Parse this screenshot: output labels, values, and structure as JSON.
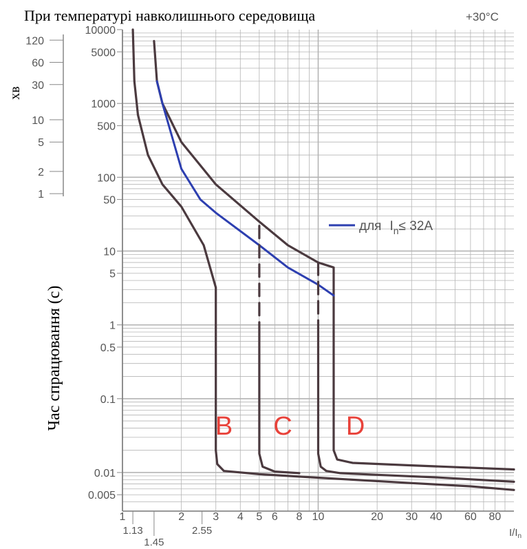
{
  "chart_data": {
    "type": "line",
    "title": "При температурі навколишнього середовища",
    "title_suffix": "+30°C",
    "ylabel": "Час спрацювання (с)",
    "y_minutes_label": "хв",
    "xlabel": "I/I",
    "xlabel_sub": "n",
    "x_scale": "log",
    "y_scale": "log",
    "xlim": [
      1,
      100
    ],
    "ylim": [
      0.003,
      10000
    ],
    "grid": true,
    "x_ticks": [
      "1",
      "2",
      "3",
      "4",
      "5",
      "6",
      "8",
      "10",
      "20",
      "30",
      "40",
      "60",
      "80"
    ],
    "x_ticks_extra": [
      "1.13",
      "1.45",
      "2.55"
    ],
    "y_ticks": [
      "0.005",
      "0.01",
      "0.1",
      "0.5",
      "1",
      "5",
      "10",
      "50",
      "100",
      "500",
      "1000",
      "5000",
      "10000"
    ],
    "minute_ticks": [
      "1",
      "2",
      "5",
      "10",
      "30",
      "60",
      "120"
    ],
    "curve_labels": [
      "B",
      "C",
      "D"
    ],
    "legend": {
      "text": "для",
      "sym": "I",
      "sub": "n",
      "cond": "≤ 32A",
      "position": "top-right"
    },
    "colors": {
      "curve": "#4b3a3f",
      "blue": "#2d3fb0",
      "letters": "#e8423a",
      "grid": "#b4b4b4",
      "axis": "#777777"
    },
    "series": [
      {
        "values": [
          [
            1.13,
            10000
          ],
          [
            1.15,
            2000
          ],
          [
            1.2,
            700
          ],
          [
            1.35,
            200
          ],
          [
            1.6,
            80
          ],
          [
            2,
            40
          ],
          [
            2.6,
            12
          ],
          [
            3,
            3.2
          ],
          [
            3,
            0.02
          ],
          [
            3.05,
            0.013
          ],
          [
            3.3,
            0.0105
          ],
          [
            5,
            0.0095
          ],
          [
            10,
            0.0085
          ],
          [
            30,
            0.0072
          ],
          [
            60,
            0.0065
          ],
          [
            100,
            0.0058
          ]
        ]
      },
      {
        "values": [
          [
            1.45,
            7000
          ],
          [
            1.5,
            2000
          ],
          [
            1.6,
            1000
          ],
          [
            2,
            300
          ],
          [
            3,
            80
          ],
          [
            5,
            25
          ],
          [
            7,
            12
          ],
          [
            10,
            7
          ],
          [
            12,
            6
          ],
          [
            12,
            0.02
          ],
          [
            12.5,
            0.015
          ],
          [
            15,
            0.0135
          ],
          [
            30,
            0.0125
          ],
          [
            100,
            0.011
          ]
        ]
      },
      {
        "values": [
          [
            1.5,
            2000
          ],
          [
            1.6,
            1000
          ],
          [
            2,
            130
          ],
          [
            2.5,
            50
          ],
          [
            3,
            33
          ],
          [
            5,
            12
          ],
          [
            7,
            6
          ],
          [
            10,
            3.5
          ],
          [
            12,
            2.5
          ]
        ]
      },
      {
        "values": [
          [
            5,
            22
          ],
          [
            5,
            1
          ]
        ],
        "dash": true
      },
      {
        "values": [
          [
            5,
            1
          ],
          [
            5,
            0.018
          ],
          [
            5.2,
            0.012
          ],
          [
            6,
            0.0103
          ],
          [
            8,
            0.0098
          ]
        ]
      },
      {
        "values": [
          [
            10,
            7
          ],
          [
            10,
            1
          ]
        ],
        "dash": true
      },
      {
        "values": [
          [
            10,
            1
          ],
          [
            10,
            0.018
          ],
          [
            10.3,
            0.012
          ],
          [
            11,
            0.0105
          ],
          [
            13,
            0.0098
          ],
          [
            20,
            0.0093
          ],
          [
            40,
            0.0086
          ],
          [
            100,
            0.0075
          ]
        ]
      }
    ]
  }
}
